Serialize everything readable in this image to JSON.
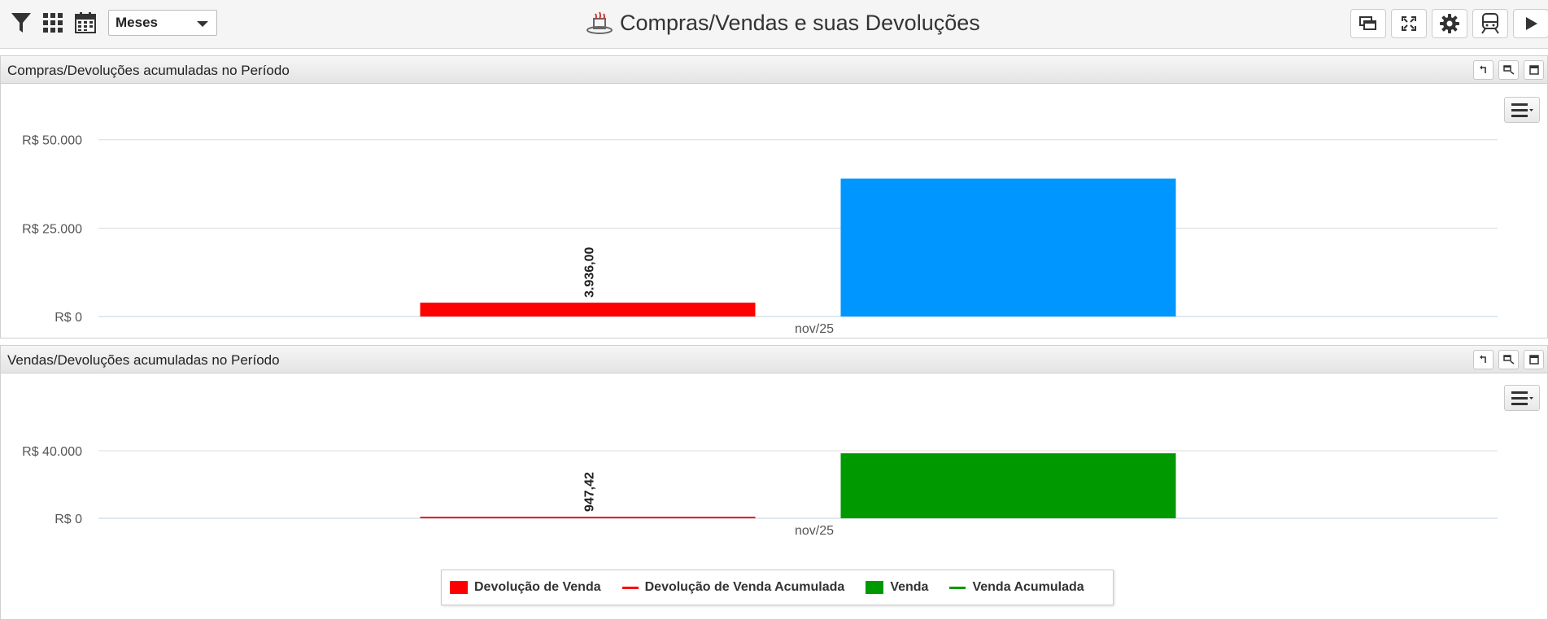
{
  "toolbar": {
    "filter_icon": "filter-icon",
    "grid_icon": "grid-icon",
    "calendar_icon": "calendar-icon",
    "period_select": "Meses",
    "title": "Compras/Vendas e suas Devoluções",
    "title_icon": "sales-icon",
    "buttons": [
      "windows-icon",
      "fullscreen-icon",
      "gear-icon",
      "train-icon",
      "play-icon"
    ]
  },
  "panels": [
    {
      "title": "Compras/Devoluções acumuladas no Período"
    },
    {
      "title": "Vendas/Devoluções acumuladas no Período"
    }
  ],
  "colors": {
    "devolucao": "#ff0000",
    "compra": "#0096ff",
    "venda": "#009900"
  },
  "chart_data": [
    {
      "type": "bar",
      "categories": [
        "nov/25"
      ],
      "ylim": [
        0,
        55000
      ],
      "yticks": [
        "R$ 0",
        "R$ 25.000",
        "R$ 50.000"
      ],
      "yticks_values": [
        0,
        25000,
        50000
      ],
      "series": [
        {
          "values": [
            3936
          ],
          "color": "#ff0000",
          "data_label": "3.936,00"
        },
        {
          "values": [
            39000
          ],
          "color": "#0096ff"
        }
      ],
      "grid": true
    },
    {
      "type": "bar",
      "categories": [
        "nov/25"
      ],
      "ylim": [
        0,
        40000
      ],
      "yticks": [
        "R$ 0",
        "R$ 40.000"
      ],
      "yticks_values": [
        0,
        40000
      ],
      "series": [
        {
          "name": "Devolução de Venda",
          "values": [
            947.42
          ],
          "color": "#ff0000",
          "data_label": "947,42"
        },
        {
          "name": "Venda",
          "values": [
            38500
          ],
          "color": "#009900"
        }
      ],
      "legend": [
        {
          "name": "Devolução de Venda",
          "kind": "bar",
          "color": "#ff0000"
        },
        {
          "name": "Devolução de Venda Acumulada",
          "kind": "line",
          "color": "#ff0000"
        },
        {
          "name": "Venda",
          "kind": "bar",
          "color": "#009900"
        },
        {
          "name": "Venda Acumulada",
          "kind": "line",
          "color": "#009900"
        }
      ],
      "legend_position": "bottom-center",
      "grid": true
    }
  ]
}
